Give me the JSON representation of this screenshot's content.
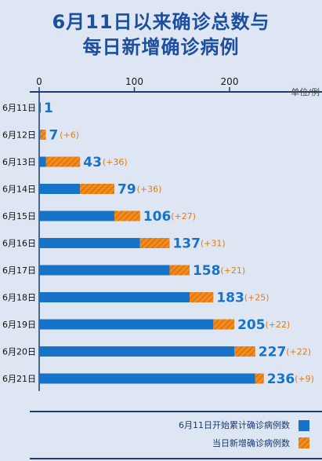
{
  "title_line1": "6月11日以来确诊总数与",
  "title_line2": "每日新增确诊病例",
  "colors": {
    "title": "#1d4f9e",
    "cumulative": "#1773c8",
    "daily": "#f28a1c",
    "axis": "#1f3c6e"
  },
  "chart_data": {
    "type": "bar",
    "orientation": "horizontal",
    "stacked": true,
    "unit_label": "单位/例",
    "xlim": [
      0,
      240
    ],
    "xticks": [
      0,
      100,
      200
    ],
    "categories": [
      "6月11日",
      "6月12日",
      "6月13日",
      "6月14日",
      "6月15日",
      "6月16日",
      "6月17日",
      "6月18日",
      "6月19日",
      "6月20日",
      "6月21日"
    ],
    "totals": [
      1,
      7,
      43,
      79,
      106,
      137,
      158,
      183,
      205,
      227,
      236
    ],
    "increments": [
      null,
      6,
      36,
      36,
      27,
      31,
      21,
      25,
      22,
      22,
      9
    ],
    "increment_labels": [
      "",
      "(+6)",
      "(+36)",
      "(+36)",
      "(+27)",
      "(+31)",
      "(+21)",
      "(+25)",
      "(+22)",
      "(+22)",
      "(+9)"
    ],
    "series": [
      {
        "name": "6月11日开始累计确诊病例数",
        "values": [
          1,
          1,
          7,
          43,
          79,
          106,
          137,
          158,
          183,
          205,
          227
        ]
      },
      {
        "name": "当日新增确诊病例数",
        "values": [
          0,
          6,
          36,
          36,
          27,
          31,
          21,
          25,
          22,
          22,
          9
        ]
      }
    ],
    "legend": [
      "6月11日开始累计确诊病例数",
      "当日新增确诊病例数"
    ],
    "legend_position": "bottom-right",
    "grid": false
  }
}
